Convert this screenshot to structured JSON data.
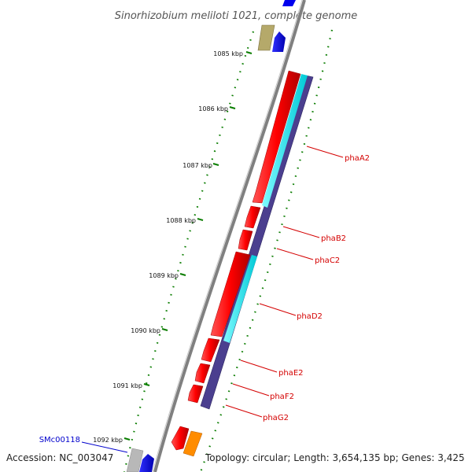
{
  "title": "Sinorhizobium meliloti 1021, complete genome",
  "footer": {
    "accession": "Accession: NC_003047",
    "topology": "Topology: circular; Length: 3,654,135 bp; Genes: 3,425"
  },
  "ticks": [
    "1085 kbp",
    "1086 kbp",
    "1087 kbp",
    "1088 kbp",
    "1089 kbp",
    "1090 kbp",
    "1091 kbp",
    "1092 kbp"
  ],
  "genes": [
    {
      "name": "phaA2"
    },
    {
      "name": "phaB2"
    },
    {
      "name": "phaC2"
    },
    {
      "name": "phaD2"
    },
    {
      "name": "phaE2"
    },
    {
      "name": "phaF2"
    },
    {
      "name": "phaG2"
    },
    {
      "name": "SMc00118"
    }
  ],
  "colors": {
    "backbone": "#808080",
    "forward_cds": "#ff0000",
    "cyan_track": "#00e5ee",
    "operon_track": "#4b3f8f",
    "blue_feature": "#0000ee",
    "olive_feature": "#b5a96a",
    "gray_feature": "#b8b8b8",
    "orange_feature": "#ff8c00",
    "tick_green": "#0a7d00",
    "label_red": "#d40000",
    "label_blue": "#0000cc"
  }
}
